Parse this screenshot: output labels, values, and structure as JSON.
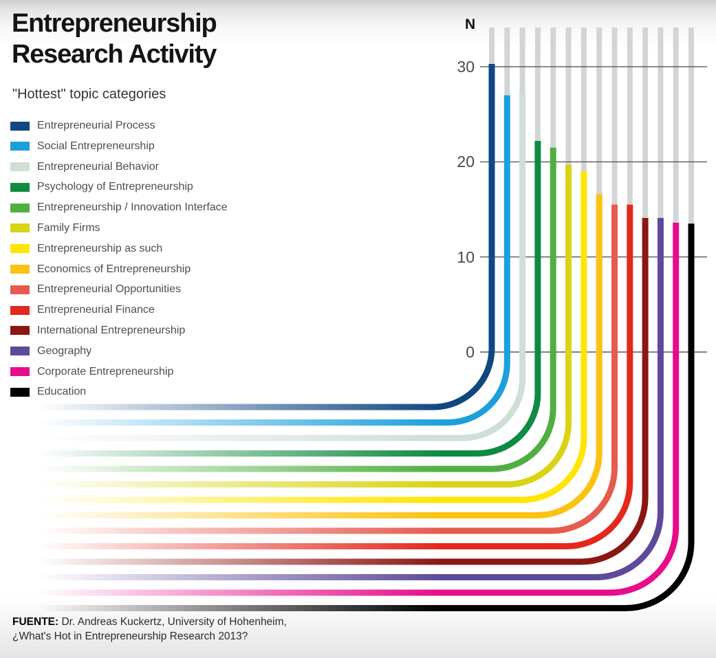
{
  "title": {
    "line1": "Entrepreneurship",
    "line2": "Research Activity"
  },
  "subtitle": "\"Hottest\" topic categories",
  "axis": {
    "unit_label": "N",
    "ticks": [
      30,
      20,
      10,
      0
    ]
  },
  "source": {
    "prefix": "FUENTE:",
    "line1": " Dr. Andreas Kuckertz, University of Hohenheim,",
    "line2": "¿What's Hot in Entrepreneurship Research 2013?"
  },
  "chart_data": {
    "type": "bar",
    "title": "Entrepreneurship Research Activity",
    "subtitle": "\"Hottest\" topic categories",
    "ylabel": "N",
    "yticks": [
      0,
      10,
      20,
      30
    ],
    "ylim": [
      0,
      33
    ],
    "grid": true,
    "legend_position": "left",
    "categories": [
      "Entrepreneurial Process",
      "Social Entrepreneurship",
      "Entrepreneurial Behavior",
      "Psychology of Entrepreneurship",
      "Entrepreneurship / Innovation Interface",
      "Family Firms",
      "Entrepreneurship as such",
      "Economics of Entrepreneurship",
      "Entrepreneurial Opportunities",
      "Entrepreneurial Finance",
      "International Entrepreneurship",
      "Geography",
      "Corporate Entrepreneurship",
      "Education"
    ],
    "values": [
      30.3,
      27,
      27.3,
      22.2,
      21.5,
      19.7,
      19,
      16.6,
      15.5,
      15.5,
      14.1,
      14.1,
      13.6,
      13.5
    ],
    "colors": [
      "#114780",
      "#1ba0dc",
      "#cfdfd5",
      "#0f8b41",
      "#50af41",
      "#d9d414",
      "#fee503",
      "#fac211",
      "#e55b50",
      "#e3281d",
      "#8b1713",
      "#5d4a9b",
      "#e60c8b",
      "#000000"
    ],
    "background_bar_color": "#d2d5d5",
    "gridline_color": "#57585a"
  }
}
